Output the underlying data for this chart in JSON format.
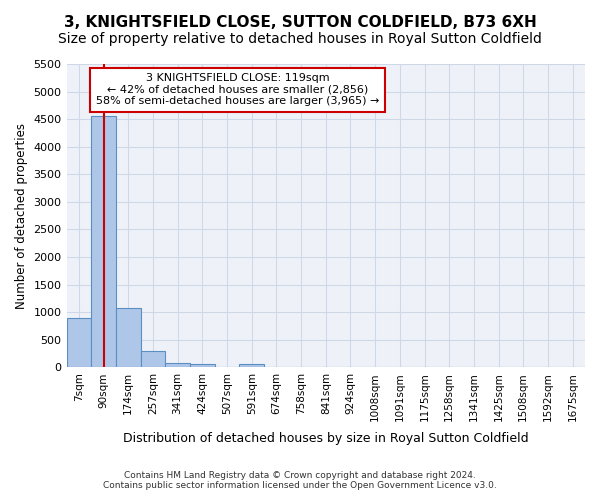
{
  "title": "3, KNIGHTSFIELD CLOSE, SUTTON COLDFIELD, B73 6XH",
  "subtitle": "Size of property relative to detached houses in Royal Sutton Coldfield",
  "xlabel": "Distribution of detached houses by size in Royal Sutton Coldfield",
  "ylabel": "Number of detached properties",
  "footer_line1": "Contains HM Land Registry data © Crown copyright and database right 2024.",
  "footer_line2": "Contains public sector information licensed under the Open Government Licence v3.0.",
  "bin_labels": [
    "7sqm",
    "90sqm",
    "174sqm",
    "257sqm",
    "341sqm",
    "424sqm",
    "507sqm",
    "591sqm",
    "674sqm",
    "758sqm",
    "841sqm",
    "924sqm",
    "1008sqm",
    "1091sqm",
    "1175sqm",
    "1258sqm",
    "1341sqm",
    "1425sqm",
    "1508sqm",
    "1592sqm",
    "1675sqm"
  ],
  "bar_values": [
    900,
    4550,
    1075,
    295,
    75,
    60,
    0,
    55,
    0,
    0,
    0,
    0,
    0,
    0,
    0,
    0,
    0,
    0,
    0,
    0,
    0
  ],
  "bar_color": "#aec6e8",
  "bar_edge_color": "#5a8fc2",
  "property_bin_index": 1,
  "red_line_color": "#cc0000",
  "annotation_text_line1": "3 KNIGHTSFIELD CLOSE: 119sqm",
  "annotation_text_line2": "← 42% of detached houses are smaller (2,856)",
  "annotation_text_line3": "58% of semi-detached houses are larger (3,965) →",
  "annotation_box_color": "#ffffff",
  "annotation_box_edge": "#cc0000",
  "ylim": [
    0,
    5500
  ],
  "yticks": [
    0,
    500,
    1000,
    1500,
    2000,
    2500,
    3000,
    3500,
    4000,
    4500,
    5000,
    5500
  ],
  "grid_color": "#d0d8e8",
  "bg_color": "#eef2f8",
  "title_fontsize": 11,
  "subtitle_fontsize": 10
}
